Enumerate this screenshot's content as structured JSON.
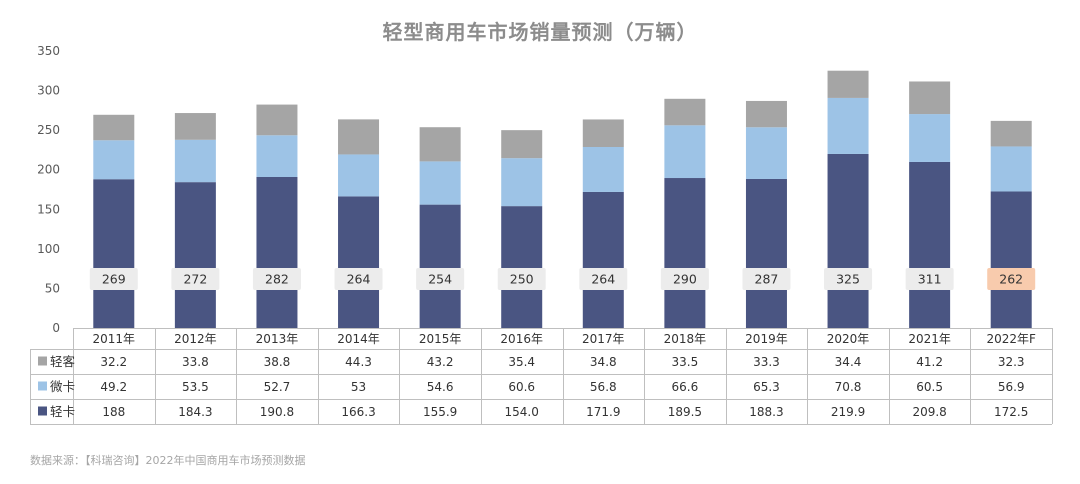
{
  "title": "轻型商用车市场销量预测（万辆）",
  "source": "数据来源：【科瑞咨询】2022年中国商用车市场预测数据",
  "chart_data": {
    "type": "bar",
    "stacked": true,
    "title": "轻型商用车市场销量预测（万辆）",
    "categories": [
      "2011年",
      "2012年",
      "2013年",
      "2014年",
      "2015年",
      "2016年",
      "2017年",
      "2018年",
      "2019年",
      "2020年",
      "2021年",
      "2022年F"
    ],
    "series": [
      {
        "name": "轻卡",
        "color": "#4a5582",
        "values": [
          188,
          184.3,
          190.8,
          166.3,
          155.9,
          154.0,
          171.9,
          189.5,
          188.3,
          219.9,
          209.8,
          172.5
        ],
        "labels": [
          "188",
          "184.3",
          "190.8",
          "166.3",
          "155.9",
          "154.0",
          "171.9",
          "189.5",
          "188.3",
          "219.9",
          "209.8",
          "172.5"
        ]
      },
      {
        "name": "微卡",
        "color": "#9dc3e6",
        "values": [
          49.2,
          53.5,
          52.7,
          53,
          54.6,
          60.6,
          56.8,
          66.6,
          65.3,
          70.8,
          60.5,
          56.9
        ],
        "labels": [
          "49.2",
          "53.5",
          "52.7",
          "53",
          "54.6",
          "60.6",
          "56.8",
          "66.6",
          "65.3",
          "70.8",
          "60.5",
          "56.9"
        ]
      },
      {
        "name": "轻客",
        "color": "#a5a5a5",
        "values": [
          32.2,
          33.8,
          38.8,
          44.3,
          43.2,
          35.4,
          34.8,
          33.5,
          33.3,
          34.4,
          41.2,
          32.3
        ],
        "labels": [
          "32.2",
          "33.8",
          "38.8",
          "44.3",
          "43.2",
          "35.4",
          "34.8",
          "33.5",
          "33.3",
          "34.4",
          "41.2",
          "32.3"
        ]
      }
    ],
    "totals": [
      "269",
      "272",
      "282",
      "264",
      "254",
      "250",
      "264",
      "290",
      "287",
      "325",
      "311",
      "262"
    ],
    "total_box_colors": [
      "#ececec",
      "#ececec",
      "#ececec",
      "#ececec",
      "#ececec",
      "#ececec",
      "#ececec",
      "#ececec",
      "#ececec",
      "#ececec",
      "#ececec",
      "#f8cbad"
    ],
    "y_ticks": [
      "0",
      "50",
      "100",
      "150",
      "200",
      "250",
      "300",
      "350"
    ],
    "ylim": [
      0,
      350
    ],
    "grid": false,
    "legend": "data-table-left"
  }
}
